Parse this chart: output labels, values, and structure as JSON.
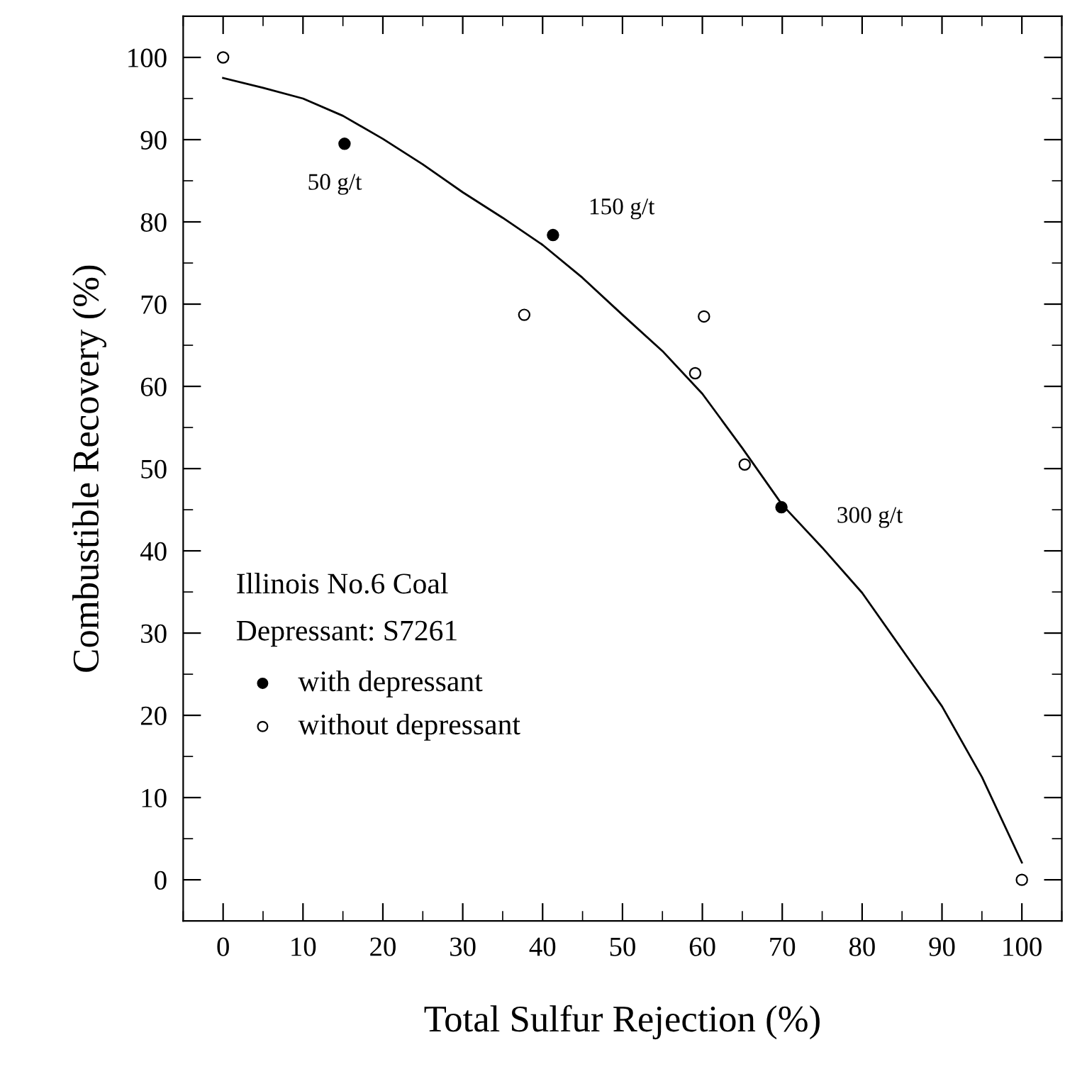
{
  "chart_data": {
    "type": "scatter",
    "xlabel": "Total Sulfur Rejection (%)",
    "ylabel": "Combustible Recovery (%)",
    "xlim": [
      -5,
      105
    ],
    "ylim": [
      -5,
      105
    ],
    "xticks": [
      0,
      10,
      20,
      30,
      40,
      50,
      60,
      70,
      80,
      90,
      100
    ],
    "yticks": [
      0,
      10,
      20,
      30,
      40,
      50,
      60,
      70,
      80,
      90,
      100
    ],
    "marker": "circle",
    "grid": false,
    "legend": "bottom left",
    "series": [
      {
        "name": "with depressant",
        "color": "#000000",
        "x": [
          15.2,
          41.3,
          69.9
        ],
        "values": [
          89.5,
          78.4,
          45.3
        ]
      },
      {
        "name": "without depressant",
        "color": "#ffffff",
        "x": [
          0,
          37.7,
          60.2,
          59.1,
          65.3,
          100
        ],
        "values": [
          100,
          68.7,
          68.5,
          61.6,
          50.5,
          0
        ]
      },
      {
        "type": "line",
        "color": "#000000",
        "line_style": "solid",
        "marker": "none",
        "x": [
          0,
          5,
          10,
          15,
          20,
          25,
          30,
          35,
          40,
          45,
          50,
          55,
          60,
          65,
          70,
          75,
          80,
          85,
          90,
          95,
          100
        ],
        "values": [
          97.5,
          96.3,
          95.0,
          92.9,
          90.1,
          87.0,
          83.6,
          80.5,
          77.2,
          73.2,
          68.7,
          64.3,
          59.1,
          52.5,
          45.6,
          40.4,
          34.9,
          28.0,
          21.1,
          12.5,
          2.1
        ]
      }
    ],
    "annotations": [
      {
        "text": "50 g/t",
        "x": 15.2,
        "y": 89.5
      },
      {
        "text": "150 g/t",
        "x": 41.3,
        "y": 78.4
      },
      {
        "text": "300 g/t",
        "x": 69.9,
        "y": 45.3
      },
      "Illinois No.6 Coal",
      "Depressant: S7261"
    ]
  }
}
